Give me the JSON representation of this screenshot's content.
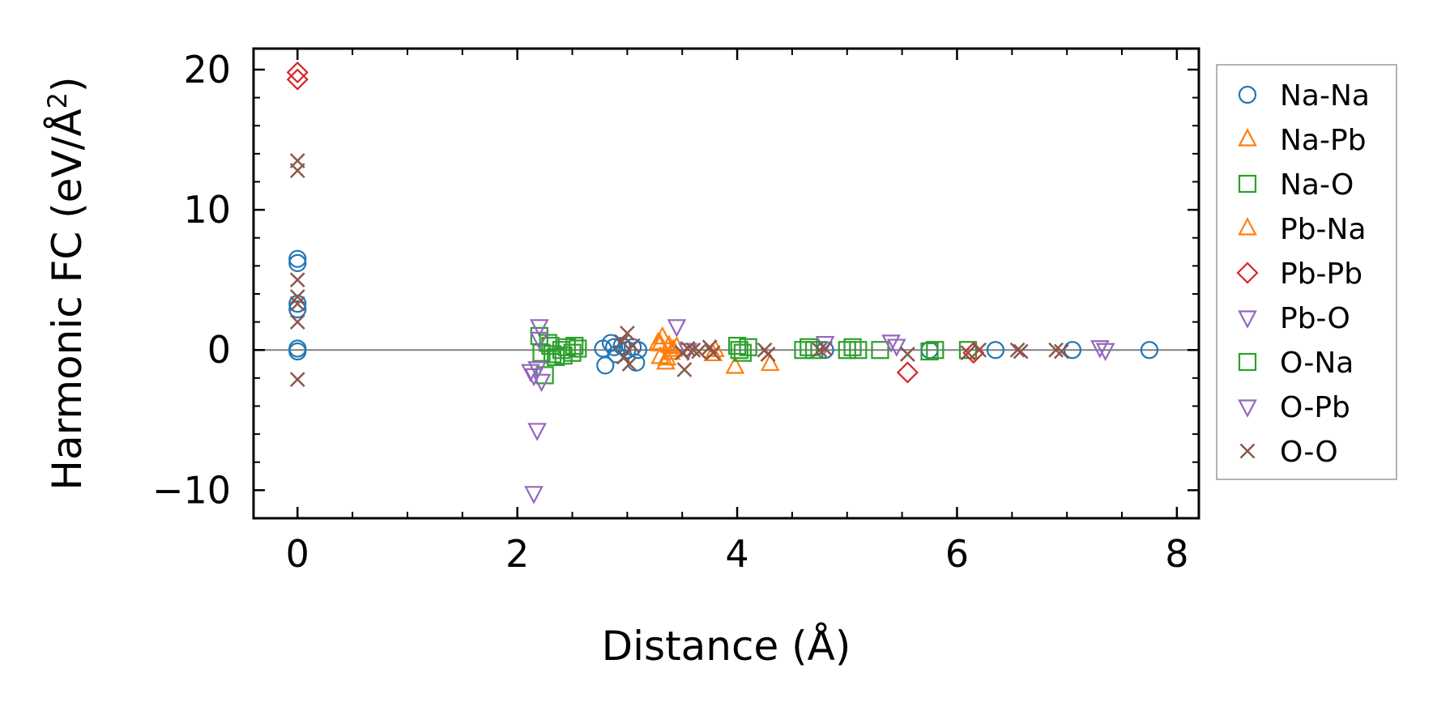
{
  "chart_data": {
    "type": "scatter",
    "xlabel": "Distance (Å)",
    "ylabel": "Harmonic FC (eV/Å²)",
    "ylabel_parts": {
      "main": "Harmonic FC (eV/Å",
      "sup": "2",
      "close": ")"
    },
    "xlim": [
      -0.4,
      8.2
    ],
    "ylim": [
      -12,
      21.5
    ],
    "xticks": [
      0,
      2,
      4,
      6,
      8
    ],
    "xtick_labels": [
      "0",
      "2",
      "4",
      "6",
      "8"
    ],
    "yticks": [
      -10,
      0,
      10,
      20
    ],
    "ytick_labels": [
      "−10",
      "0",
      "10",
      "20"
    ],
    "x_minor_step": 0.5,
    "y_minor_step": 2,
    "zero_line": 0,
    "grid": false,
    "legend_position": "outside-right",
    "series": [
      {
        "name": "Na-Na",
        "marker": "circle",
        "color": "#1f77b4",
        "points": [
          [
            0,
            6.5
          ],
          [
            0,
            6.2
          ],
          [
            0,
            3.3
          ],
          [
            0,
            2.9
          ],
          [
            0,
            0.1
          ],
          [
            0,
            -0.1
          ],
          [
            2.78,
            0.1
          ],
          [
            2.8,
            -1.1
          ],
          [
            2.85,
            0.5
          ],
          [
            2.88,
            0.2
          ],
          [
            2.9,
            -0.3
          ],
          [
            2.95,
            0.3
          ],
          [
            3.0,
            0
          ],
          [
            3.05,
            0.2
          ],
          [
            3.08,
            -0.9
          ],
          [
            3.1,
            0
          ],
          [
            4.8,
            0
          ],
          [
            5.75,
            0
          ],
          [
            6.35,
            0
          ],
          [
            7.05,
            0
          ],
          [
            7.75,
            0
          ]
        ]
      },
      {
        "name": "Na-Pb",
        "marker": "triangle-up",
        "color": "#ff7f0e",
        "points": [
          [
            3.28,
            0.5
          ],
          [
            3.3,
            -0.5
          ],
          [
            3.32,
            0.9
          ],
          [
            3.35,
            -0.9
          ],
          [
            3.38,
            0.3
          ],
          [
            3.4,
            -0.2
          ],
          [
            3.8,
            0
          ],
          [
            3.98,
            -1.2
          ],
          [
            4.3,
            -1.0
          ]
        ]
      },
      {
        "name": "Na-O",
        "marker": "square",
        "color": "#2ca02c",
        "points": [
          [
            2.2,
            1.0
          ],
          [
            2.22,
            -0.2
          ],
          [
            2.25,
            -1.8
          ],
          [
            2.3,
            0.3
          ],
          [
            2.35,
            -0.5
          ],
          [
            2.4,
            0
          ],
          [
            2.45,
            0.2
          ],
          [
            2.5,
            -0.2
          ],
          [
            2.55,
            0.1
          ],
          [
            4.0,
            0.3
          ],
          [
            4.05,
            -0.2
          ],
          [
            4.1,
            0.2
          ],
          [
            4.6,
            0
          ],
          [
            4.7,
            0
          ],
          [
            5.0,
            0
          ],
          [
            5.1,
            0
          ],
          [
            5.3,
            0
          ],
          [
            5.8,
            0
          ],
          [
            6.1,
            0
          ]
        ]
      },
      {
        "name": "Pb-Na",
        "marker": "triangle-up",
        "color": "#ff7f0e",
        "points": [
          [
            3.3,
            0.4
          ],
          [
            3.36,
            -0.6
          ],
          [
            3.42,
            0
          ],
          [
            3.45,
            0.2
          ],
          [
            3.78,
            -0.3
          ]
        ]
      },
      {
        "name": "Pb-Pb",
        "marker": "diamond",
        "color": "#d62728",
        "points": [
          [
            0,
            19.8
          ],
          [
            0,
            19.3
          ],
          [
            5.55,
            -1.6
          ],
          [
            6.15,
            -0.2
          ]
        ]
      },
      {
        "name": "Pb-O",
        "marker": "triangle-down",
        "color": "#9467bd",
        "points": [
          [
            2.12,
            -1.5
          ],
          [
            2.15,
            -10.2
          ],
          [
            2.18,
            -5.7
          ],
          [
            2.2,
            1.7
          ],
          [
            2.22,
            -2.2
          ],
          [
            3.45,
            1.7
          ],
          [
            3.55,
            0
          ],
          [
            4.8,
            0.5
          ],
          [
            5.4,
            0.6
          ],
          [
            7.3,
            0.2
          ]
        ]
      },
      {
        "name": "O-Na",
        "marker": "square",
        "color": "#2ca02c",
        "points": [
          [
            2.28,
            0.5
          ],
          [
            2.32,
            -0.3
          ],
          [
            2.42,
            -0.4
          ],
          [
            2.52,
            0.3
          ],
          [
            4.02,
            0
          ],
          [
            4.65,
            0.2
          ],
          [
            5.05,
            0.2
          ],
          [
            5.75,
            -0.1
          ]
        ]
      },
      {
        "name": "O-Pb",
        "marker": "triangle-down",
        "color": "#9467bd",
        "points": [
          [
            2.15,
            -1.8
          ],
          [
            2.18,
            -1.3
          ],
          [
            2.2,
            0.8
          ],
          [
            5.45,
            0.3
          ],
          [
            7.35,
            0
          ]
        ]
      },
      {
        "name": "O-O",
        "marker": "x",
        "color": "#8c564b",
        "points": [
          [
            0,
            13.5
          ],
          [
            0,
            12.8
          ],
          [
            0,
            5.0
          ],
          [
            0,
            3.8
          ],
          [
            0,
            3.3
          ],
          [
            0,
            2.0
          ],
          [
            0,
            -2.1
          ],
          [
            2.95,
            0.6
          ],
          [
            2.97,
            -0.5
          ],
          [
            3.0,
            1.2
          ],
          [
            3.02,
            -1.0
          ],
          [
            3.05,
            0.3
          ],
          [
            3.5,
            -0.2
          ],
          [
            3.52,
            -1.4
          ],
          [
            3.55,
            0.1
          ],
          [
            3.6,
            0
          ],
          [
            3.65,
            -0.1
          ],
          [
            3.75,
            0.2
          ],
          [
            3.78,
            -0.2
          ],
          [
            4.25,
            0
          ],
          [
            4.28,
            -0.3
          ],
          [
            4.75,
            0
          ],
          [
            4.8,
            0.1
          ],
          [
            5.55,
            -0.3
          ],
          [
            6.1,
            -0.2
          ],
          [
            6.2,
            0
          ],
          [
            6.55,
            0
          ],
          [
            6.58,
            -0.1
          ],
          [
            6.9,
            0
          ],
          [
            6.95,
            -0.1
          ]
        ]
      }
    ]
  }
}
